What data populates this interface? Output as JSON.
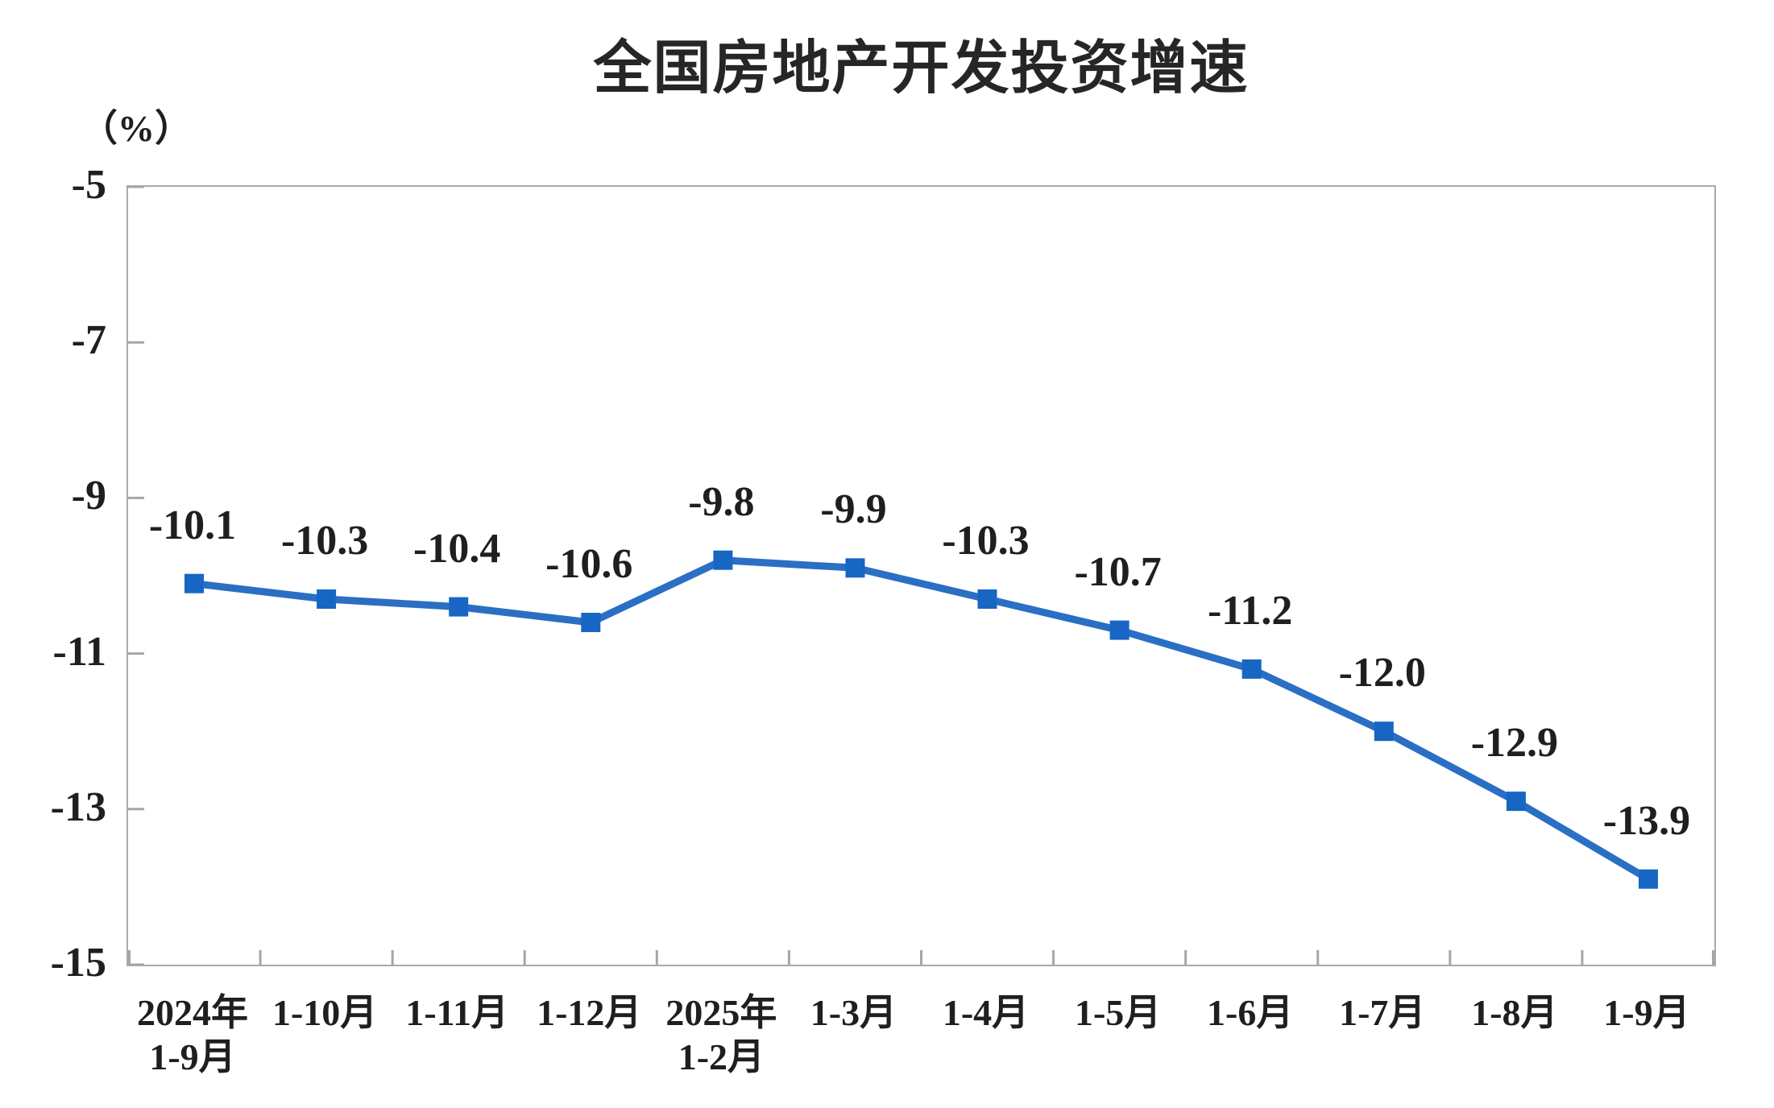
{
  "chart": {
    "title": "全国房地产开发投资增速",
    "unit_label": "（%）",
    "line_color": "#2a6fc4",
    "marker_color": "#1766c4",
    "axis_color": "#a6a6a6",
    "text_color": "#1f1f1f"
  },
  "chart_data": {
    "type": "line",
    "title": "全国房地产开发投资增速",
    "ylabel": "（%）",
    "xlabel": "",
    "categories": [
      "2024年\n1-9月",
      "1-10月",
      "1-11月",
      "1-12月",
      "2025年\n1-2月",
      "1-3月",
      "1-4月",
      "1-5月",
      "1-6月",
      "1-7月",
      "1-8月",
      "1-9月"
    ],
    "values": [
      -10.1,
      -10.3,
      -10.4,
      -10.6,
      -9.8,
      -9.9,
      -10.3,
      -10.7,
      -11.2,
      -12.0,
      -12.9,
      -13.9
    ],
    "data_labels": [
      "-10.1",
      "-10.3",
      "-10.4",
      "-10.6",
      "-9.8",
      "-9.9",
      "-10.3",
      "-10.7",
      "-11.2",
      "-12.0",
      "-12.9",
      "-13.9"
    ],
    "ylim": [
      -15,
      -5
    ],
    "yticks": [
      -5,
      -7,
      -9,
      -11,
      -13,
      -15
    ],
    "grid": false,
    "legend": false,
    "marker": "square",
    "label_position": "above"
  }
}
